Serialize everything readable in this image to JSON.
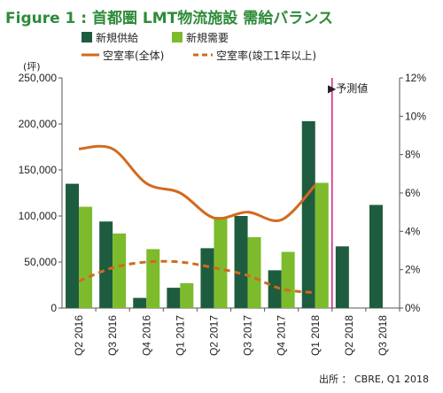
{
  "colors": {
    "title": "#2e8b3a",
    "supply": "#1e5c3f",
    "demand": "#7dbb2c",
    "vacancy_all": "#d26a1e",
    "vacancy_1yr": "#d26a1e",
    "forecast_line": "#d61f7a"
  },
  "chart_data": {
    "type": "bar",
    "title": "Figure 1 : 首都圏 LMT物流施設 需給バランス",
    "y_left_unit": "(坪)",
    "categories": [
      "Q2 2016",
      "Q3 2016",
      "Q4 2016",
      "Q1 2017",
      "Q2 2017",
      "Q3 2017",
      "Q4 2017",
      "Q1 2018",
      "Q2 2018",
      "Q3 2018"
    ],
    "y_left_ticks": [
      "0",
      "50,000",
      "100,000",
      "150,000",
      "200,000",
      "250,000"
    ],
    "y_right_ticks": [
      "0%",
      "2%",
      "4%",
      "6%",
      "8%",
      "10%",
      "12%"
    ],
    "ylim_left": [
      0,
      250000
    ],
    "ylim_right": [
      0,
      12
    ],
    "series": [
      {
        "name": "新規供給",
        "kind": "bar",
        "values": [
          135000,
          94000,
          11000,
          22000,
          65000,
          100000,
          41000,
          203000,
          67000,
          112000
        ]
      },
      {
        "name": "新規需要",
        "kind": "bar",
        "values": [
          110000,
          81000,
          64000,
          27000,
          99000,
          77000,
          61000,
          136000,
          null,
          null
        ]
      },
      {
        "name": "空室率(全体)",
        "kind": "line",
        "axis": "right",
        "values": [
          8.3,
          8.3,
          6.5,
          6.0,
          4.7,
          5.0,
          4.6,
          6.4,
          null,
          null
        ]
      },
      {
        "name": "空室率(竣工1年以上)",
        "kind": "dashed-line",
        "axis": "right",
        "values": [
          1.4,
          2.1,
          2.4,
          2.4,
          2.1,
          1.7,
          1.0,
          0.8,
          null,
          null
        ]
      }
    ],
    "forecast_label": "▶予測値",
    "source": "出所 ： CBRE, Q1 2018"
  }
}
